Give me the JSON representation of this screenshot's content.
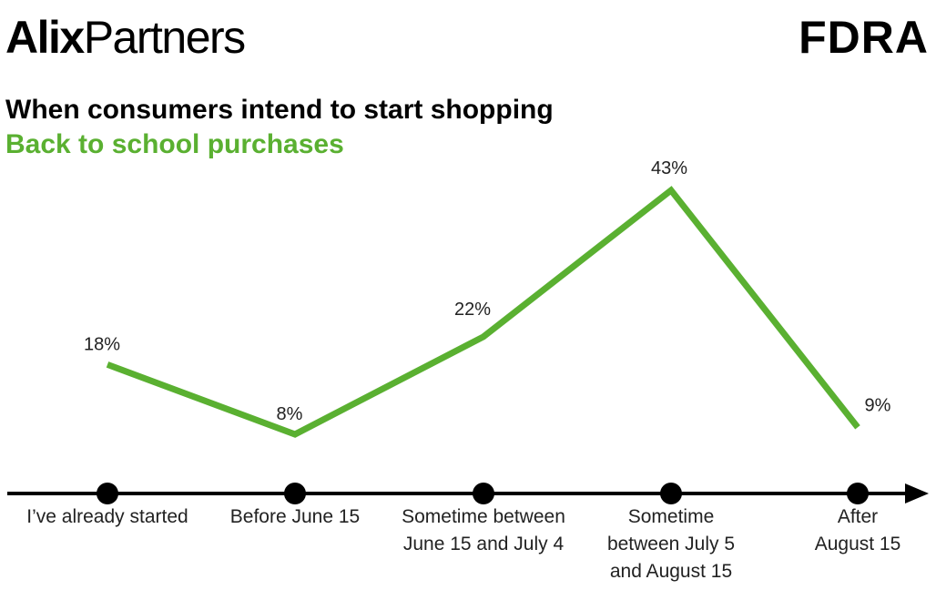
{
  "logos": {
    "left_bold": "Alix",
    "left_regular": "Partners",
    "right": "FDRA"
  },
  "colors": {
    "line": "#5ab031",
    "axis": "#000000",
    "subtitle": "#5ab031"
  },
  "chart_data": {
    "type": "line",
    "title": "When consumers intend to start shopping",
    "subtitle": "Back to school purchases",
    "categories": [
      [
        "I’ve already started"
      ],
      [
        "Before June 15"
      ],
      [
        "Sometime between",
        "June 15 and July 4"
      ],
      [
        "Sometime",
        "between July 5",
        "and August 15"
      ],
      [
        "After",
        "August 15"
      ]
    ],
    "series": [
      {
        "values": [
          18,
          8,
          22,
          43,
          9
        ],
        "labels": [
          "18%",
          "8%",
          "22%",
          "43%",
          "9%"
        ]
      }
    ],
    "ylim": [
      0,
      50
    ],
    "grid": false,
    "legend": "none"
  }
}
